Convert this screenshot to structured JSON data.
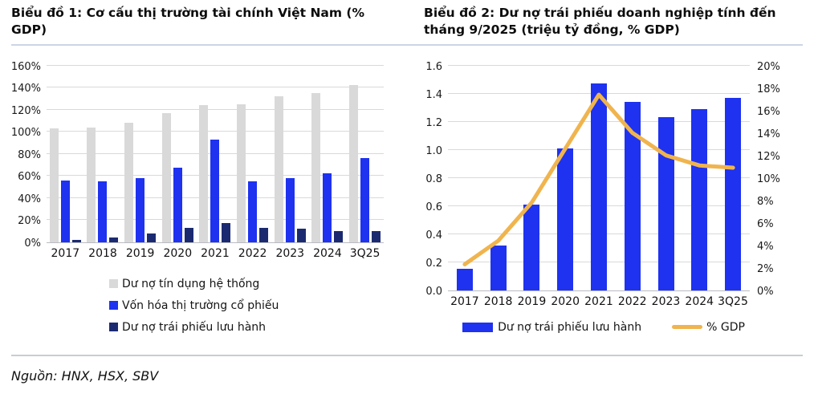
{
  "page": {
    "source": "Nguồn: HNX, HSX, SBV",
    "colors": {
      "bar_blue": "#1e32f0",
      "bar_navy": "#1b2a70",
      "bar_gray": "#d9d9d9",
      "line_orange": "#f0b44e",
      "gridline": "#d9d9d9",
      "title_rule": "#ccd6e5",
      "footer_rule": "#c9ccd2"
    }
  },
  "chart_data": [
    {
      "type": "bar",
      "title": "Biểu đồ 1: Cơ cấu thị trường tài chính Việt Nam (% GDP)",
      "categories": [
        "2017",
        "2018",
        "2019",
        "2020",
        "2021",
        "2022",
        "2023",
        "2024",
        "3Q25"
      ],
      "series": [
        {
          "name": "Dư nợ tín dụng hệ thống",
          "color": "#d9d9d9",
          "values": [
            103,
            104,
            108,
            117,
            124,
            125,
            132,
            135,
            142
          ]
        },
        {
          "name": "Vốn hóa thị trường cổ phiếu",
          "color": "#1e32f0",
          "values": [
            56,
            55,
            58,
            67,
            93,
            55,
            58,
            62,
            76
          ]
        },
        {
          "name": "Dư nợ trái phiếu lưu hành",
          "color": "#1b2a70",
          "values": [
            2,
            4,
            8,
            13,
            17,
            13,
            12,
            10,
            10
          ]
        }
      ],
      "ylabel": "% GDP",
      "ylim": [
        0,
        160
      ],
      "ytick_step": 20,
      "ytick_suffix": "%",
      "grid": true,
      "legend_position": "bottom-left-vertical"
    },
    {
      "type": "bar+line",
      "title": "Biểu đồ 2: Dư nợ trái phiếu doanh nghiệp tính đến tháng 9/2025 (triệu tỷ đồng, % GDP)",
      "categories": [
        "2017",
        "2018",
        "2019",
        "2020",
        "2021",
        "2022",
        "2023",
        "2024",
        "3Q25"
      ],
      "bar_series": {
        "name": "Dư nợ trái phiếu lưu hành",
        "color": "#1e32f0",
        "axis": "left",
        "values": [
          0.15,
          0.32,
          0.61,
          1.01,
          1.47,
          1.34,
          1.23,
          1.29,
          1.37
        ]
      },
      "line_series": {
        "name": "% GDP",
        "color": "#f0b44e",
        "axis": "right",
        "values": [
          2.4,
          4.5,
          7.9,
          12.7,
          17.5,
          14.1,
          12.1,
          11.2,
          11.0
        ]
      },
      "ylim_left": [
        0,
        1.6
      ],
      "ytick_step_left": 0.2,
      "ylim_right": [
        0,
        20
      ],
      "ytick_step_right": 2,
      "ytick_suffix_right": "%",
      "grid": true,
      "legend_position": "bottom-center-horizontal"
    }
  ]
}
